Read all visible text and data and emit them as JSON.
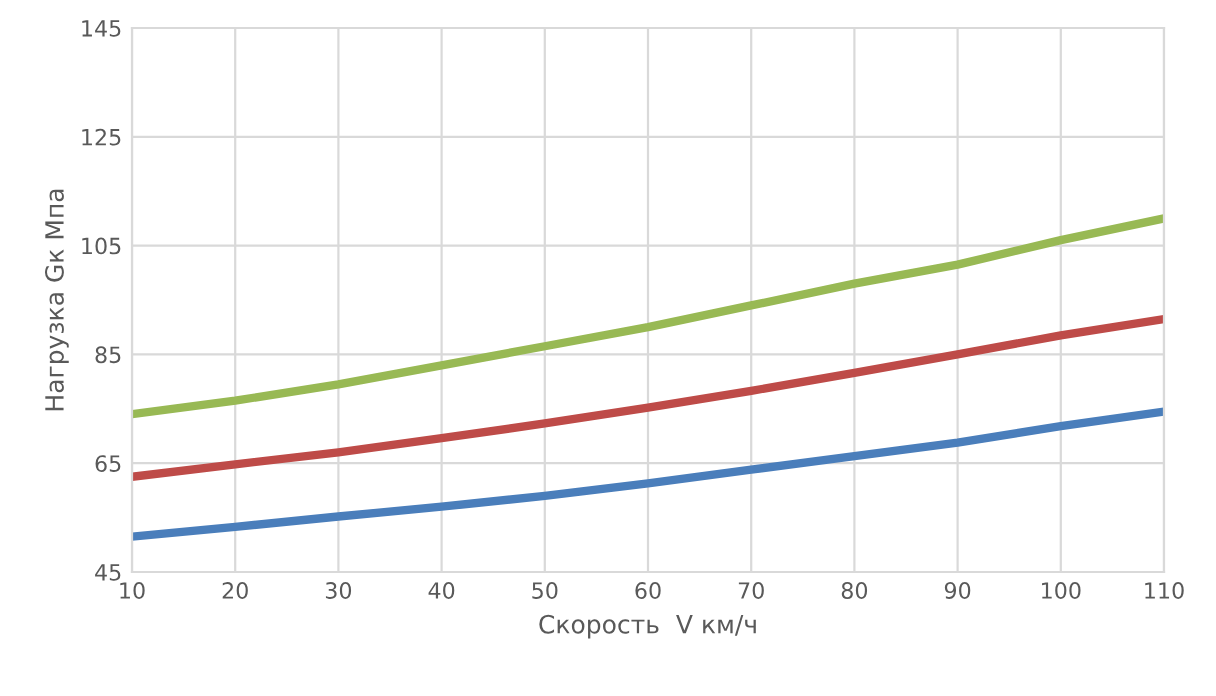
{
  "chart_data": {
    "type": "line",
    "xlabel": "Скорость  V км/ч",
    "ylabel": "Нагрузка Gк Мпа",
    "x": [
      10,
      20,
      30,
      40,
      50,
      60,
      70,
      80,
      90,
      100,
      110
    ],
    "series": [
      {
        "color": "#4a7ebb",
        "values": [
          51.5,
          53.3,
          55.2,
          57,
          59,
          61.3,
          63.8,
          66.3,
          68.8,
          71.8,
          74.5
        ]
      },
      {
        "color": "#be4b48",
        "values": [
          62.5,
          64.8,
          67,
          69.6,
          72.3,
          75.2,
          78.3,
          81.6,
          85,
          88.5,
          91.5
        ]
      },
      {
        "color": "#98b954",
        "values": [
          74,
          76.5,
          79.5,
          83,
          86.5,
          90,
          94,
          98,
          101.5,
          106,
          110
        ]
      }
    ],
    "xlim": [
      10,
      110
    ],
    "xticks": [
      10,
      20,
      30,
      40,
      50,
      60,
      70,
      80,
      90,
      100,
      110
    ],
    "ylim": [
      45,
      145
    ],
    "yticks": [
      45,
      65,
      85,
      105,
      125,
      145
    ],
    "grid": true,
    "legend": false,
    "marker": "none",
    "line_style": "solid"
  }
}
